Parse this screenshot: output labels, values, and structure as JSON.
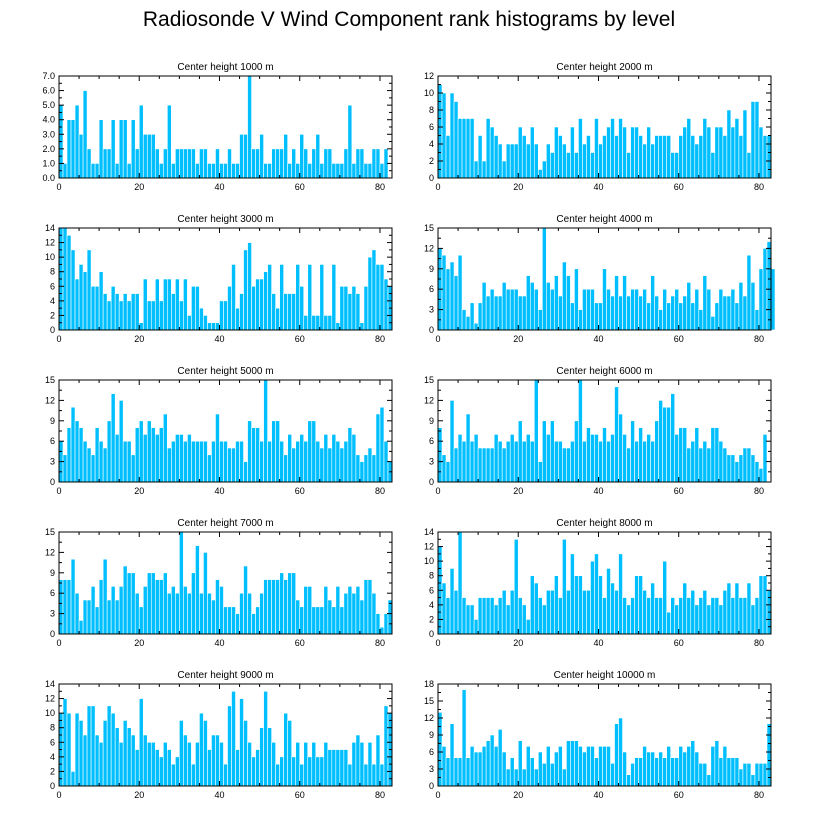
{
  "title": "Radiosonde V Wind Component rank histograms by level",
  "colors": {
    "bar": "#00bfff",
    "bar_edge": "#ffffff",
    "axis": "#000000"
  },
  "chart_data": [
    {
      "type": "bar",
      "title": "Center height 1000 m",
      "xlim": [
        0,
        83
      ],
      "ylim": [
        0,
        7
      ],
      "xticks": [
        "0",
        "20",
        "40",
        "60",
        "80"
      ],
      "yticks": [
        "0.0",
        "1.0",
        "2.0",
        "3.0",
        "4.0",
        "5.0",
        "6.0",
        "7.0"
      ],
      "values": [
        5,
        1,
        4,
        4,
        5,
        3,
        6,
        2,
        1,
        1,
        4,
        2,
        2,
        4,
        1,
        4,
        4,
        1,
        4,
        2,
        5,
        3,
        3,
        3,
        2,
        1,
        2,
        5,
        1,
        2,
        2,
        2,
        2,
        2,
        1,
        2,
        2,
        1,
        1,
        2,
        1,
        1,
        2,
        1,
        1,
        3,
        3,
        7,
        2,
        2,
        3,
        1,
        1,
        2,
        2,
        2,
        3,
        1,
        2,
        1,
        3,
        2,
        1,
        2,
        3,
        1,
        2,
        2,
        1,
        1,
        1,
        2,
        5,
        1,
        2,
        2,
        1,
        1,
        2,
        2,
        1,
        2,
        0
      ]
    },
    {
      "type": "bar",
      "title": "Center height 2000 m",
      "xlim": [
        0,
        83
      ],
      "ylim": [
        0,
        12
      ],
      "xticks": [
        "0",
        "20",
        "40",
        "60",
        "80"
      ],
      "yticks": [
        "0",
        "2",
        "4",
        "6",
        "8",
        "10",
        "12"
      ],
      "values": [
        11,
        10,
        5,
        10,
        9,
        7,
        7,
        7,
        7,
        2,
        5,
        2,
        7,
        6,
        5,
        4,
        2,
        4,
        4,
        4,
        6,
        5,
        4,
        6,
        4,
        1,
        2,
        4,
        3,
        6,
        5,
        4,
        3,
        6,
        3,
        7,
        4,
        5,
        3,
        7,
        4,
        5,
        6,
        7,
        5,
        7,
        6,
        3,
        6,
        6,
        5,
        4,
        6,
        4,
        5,
        5,
        5,
        5,
        3,
        3,
        5,
        6,
        7,
        5,
        4,
        5,
        7,
        6,
        3,
        6,
        6,
        5,
        8,
        6,
        7,
        5,
        8,
        3,
        9,
        9,
        6,
        5,
        5
      ]
    },
    {
      "type": "bar",
      "title": "Center height 3000 m",
      "xlim": [
        0,
        83
      ],
      "ylim": [
        0,
        14
      ],
      "xticks": [
        "0",
        "20",
        "40",
        "60",
        "80"
      ],
      "yticks": [
        "0",
        "2",
        "4",
        "6",
        "8",
        "10",
        "12",
        "14"
      ],
      "values": [
        14,
        14,
        13,
        11,
        7,
        9,
        8,
        11,
        6,
        6,
        8,
        5,
        4,
        6,
        5,
        4,
        5,
        4,
        5,
        5,
        1,
        7,
        4,
        4,
        7,
        4,
        7,
        7,
        5,
        7,
        4,
        7,
        2,
        6,
        6,
        3,
        2,
        1,
        1,
        1,
        4,
        4,
        6,
        9,
        3,
        5,
        11,
        12,
        6,
        7,
        7,
        8,
        9,
        5,
        3,
        9,
        5,
        5,
        5,
        9,
        6,
        2,
        9,
        2,
        2,
        9,
        2,
        2,
        9,
        1,
        6,
        6,
        5,
        6,
        5,
        1,
        6,
        10,
        11,
        9,
        9,
        7,
        6
      ]
    },
    {
      "type": "bar",
      "title": "Center height 4000 m",
      "xlim": [
        0,
        83
      ],
      "ylim": [
        0,
        15
      ],
      "xticks": [
        "0",
        "20",
        "40",
        "60",
        "80"
      ],
      "yticks": [
        "0",
        "3",
        "6",
        "9",
        "12",
        "15"
      ],
      "values": [
        12,
        11,
        9,
        10,
        8,
        11,
        3,
        2,
        4,
        1,
        4,
        7,
        5,
        6,
        5,
        5,
        7,
        6,
        6,
        6,
        5,
        5,
        8,
        7,
        6,
        3,
        15,
        7,
        6,
        8,
        5,
        10,
        8,
        4,
        9,
        3,
        6,
        6,
        6,
        4,
        4,
        9,
        6,
        5,
        8,
        5,
        8,
        5,
        6,
        6,
        5,
        6,
        4,
        8,
        5,
        3,
        6,
        4,
        5,
        6,
        4,
        5,
        7,
        4,
        6,
        3,
        8,
        6,
        2,
        4,
        6,
        5,
        5,
        6,
        4,
        7,
        5,
        11,
        7,
        3,
        9,
        12,
        13,
        9
      ]
    },
    {
      "type": "bar",
      "title": "Center height 5000 m",
      "xlim": [
        0,
        83
      ],
      "ylim": [
        0,
        15
      ],
      "xticks": [
        "0",
        "20",
        "40",
        "60",
        "80"
      ],
      "yticks": [
        "0",
        "3",
        "6",
        "9",
        "12",
        "15"
      ],
      "values": [
        6,
        4,
        8,
        11,
        9,
        8,
        6,
        5,
        4,
        8,
        6,
        5,
        9,
        13,
        7,
        12,
        6,
        6,
        4,
        8,
        9,
        7,
        9,
        8,
        7,
        8,
        10,
        5,
        6,
        7,
        7,
        6,
        7,
        6,
        6,
        6,
        6,
        4,
        6,
        10,
        6,
        6,
        5,
        5,
        6,
        6,
        3,
        9,
        8,
        8,
        6,
        15,
        6,
        9,
        9,
        6,
        4,
        7,
        5,
        6,
        7,
        6,
        9,
        9,
        6,
        5,
        7,
        5,
        7,
        6,
        5,
        6,
        8,
        7,
        4,
        3,
        4,
        5,
        4,
        10,
        11,
        6,
        3
      ]
    },
    {
      "type": "bar",
      "title": "Center height 6000 m",
      "xlim": [
        0,
        83
      ],
      "ylim": [
        0,
        15
      ],
      "xticks": [
        "0",
        "20",
        "40",
        "60",
        "80"
      ],
      "yticks": [
        "0",
        "3",
        "6",
        "9",
        "12",
        "15"
      ],
      "values": [
        8,
        4,
        3,
        12,
        5,
        7,
        6,
        10,
        6,
        7,
        5,
        5,
        5,
        5,
        7,
        6,
        5,
        6,
        7,
        6,
        9,
        6,
        7,
        6,
        15,
        3,
        9,
        7,
        9,
        6,
        6,
        5,
        5,
        6,
        9,
        15,
        6,
        8,
        7,
        7,
        6,
        8,
        6,
        7,
        14,
        10,
        7,
        5,
        9,
        6,
        8,
        6,
        7,
        6,
        9,
        12,
        11,
        11,
        13,
        7,
        8,
        8,
        5,
        6,
        8,
        5,
        6,
        5,
        8,
        8,
        6,
        5,
        4,
        4,
        3,
        4,
        5,
        5,
        4,
        3,
        2,
        7
      ]
    },
    {
      "type": "bar",
      "title": "Center height 7000 m",
      "xlim": [
        0,
        83
      ],
      "ylim": [
        0,
        15
      ],
      "xticks": [
        "0",
        "20",
        "40",
        "60",
        "80"
      ],
      "yticks": [
        "0",
        "3",
        "6",
        "9",
        "12",
        "15"
      ],
      "values": [
        8,
        8,
        8,
        11,
        6,
        2,
        5,
        5,
        7,
        4,
        8,
        11,
        5,
        7,
        5,
        7,
        10,
        9,
        9,
        6,
        4,
        7,
        9,
        9,
        8,
        8,
        9,
        6,
        7,
        6,
        15,
        7,
        6,
        9,
        13,
        6,
        12,
        6,
        5,
        8,
        7,
        4,
        4,
        4,
        3,
        6,
        10,
        6,
        3,
        4,
        6,
        8,
        8,
        8,
        8,
        9,
        8,
        9,
        9,
        5,
        4,
        7,
        7,
        4,
        4,
        4,
        7,
        5,
        4,
        7,
        4,
        6,
        7,
        6,
        7,
        5,
        8,
        8,
        6,
        3,
        1,
        3,
        5
      ]
    },
    {
      "type": "bar",
      "title": "Center height 8000 m",
      "xlim": [
        0,
        83
      ],
      "ylim": [
        0,
        14
      ],
      "xticks": [
        "0",
        "20",
        "40",
        "60",
        "80"
      ],
      "yticks": [
        "0",
        "2",
        "4",
        "6",
        "8",
        "10",
        "12",
        "14"
      ],
      "values": [
        12,
        7,
        5,
        9,
        6,
        14,
        5,
        4,
        4,
        2,
        5,
        5,
        5,
        5,
        4,
        5,
        6,
        4,
        6,
        13,
        5,
        4,
        2,
        8,
        7,
        5,
        4,
        6,
        6,
        8,
        5,
        13,
        6,
        11,
        8,
        8,
        6,
        6,
        10,
        11,
        8,
        5,
        9,
        7,
        6,
        11,
        5,
        4,
        5,
        8,
        8,
        6,
        5,
        7,
        5,
        5,
        10,
        3,
        5,
        4,
        5,
        7,
        5,
        6,
        4,
        5,
        6,
        4,
        5,
        5,
        4,
        6,
        7,
        5,
        7,
        5,
        5,
        7,
        4,
        5,
        8,
        8,
        6
      ]
    },
    {
      "type": "bar",
      "title": "Center height 9000 m",
      "xlim": [
        0,
        83
      ],
      "ylim": [
        0,
        14
      ],
      "xticks": [
        "0",
        "20",
        "40",
        "60",
        "80"
      ],
      "yticks": [
        "0",
        "2",
        "4",
        "6",
        "8",
        "10",
        "12",
        "14"
      ],
      "values": [
        10,
        12,
        10,
        2,
        10,
        9,
        7,
        11,
        11,
        7,
        6,
        9,
        11,
        10,
        8,
        6,
        9,
        8,
        7,
        5,
        12,
        7,
        6,
        6,
        5,
        4,
        6,
        5,
        3,
        4,
        9,
        7,
        6,
        3,
        6,
        10,
        9,
        5,
        7,
        7,
        6,
        3,
        11,
        13,
        5,
        12,
        9,
        6,
        4,
        5,
        8,
        13,
        8,
        6,
        3,
        4,
        10,
        9,
        4,
        6,
        3,
        6,
        4,
        6,
        4,
        4,
        6,
        5,
        5,
        5,
        5,
        5,
        3,
        6,
        7,
        6,
        3,
        6,
        3,
        7,
        3,
        11,
        10
      ]
    },
    {
      "type": "bar",
      "title": "Center height 10000 m",
      "xlim": [
        0,
        83
      ],
      "ylim": [
        0,
        18
      ],
      "xticks": [
        "0",
        "20",
        "40",
        "60",
        "80"
      ],
      "yticks": [
        "0",
        "3",
        "6",
        "9",
        "12",
        "15",
        "18"
      ],
      "values": [
        13,
        7,
        5,
        11,
        5,
        5,
        17,
        5,
        7,
        6,
        6,
        7,
        8,
        9,
        7,
        10,
        6,
        3,
        5,
        3,
        8,
        3,
        7,
        5,
        3,
        6,
        4,
        7,
        4,
        6,
        7,
        3,
        8,
        8,
        8,
        7,
        6,
        7,
        7,
        5,
        7,
        7,
        7,
        4,
        11,
        12,
        6,
        2,
        4,
        5,
        5,
        7,
        6,
        6,
        5,
        6,
        5,
        7,
        5,
        5,
        7,
        6,
        7,
        8,
        6,
        4,
        4,
        2,
        7,
        8,
        5,
        7,
        5,
        5,
        5,
        3,
        4,
        4,
        2,
        4,
        4,
        4,
        11
      ]
    }
  ]
}
